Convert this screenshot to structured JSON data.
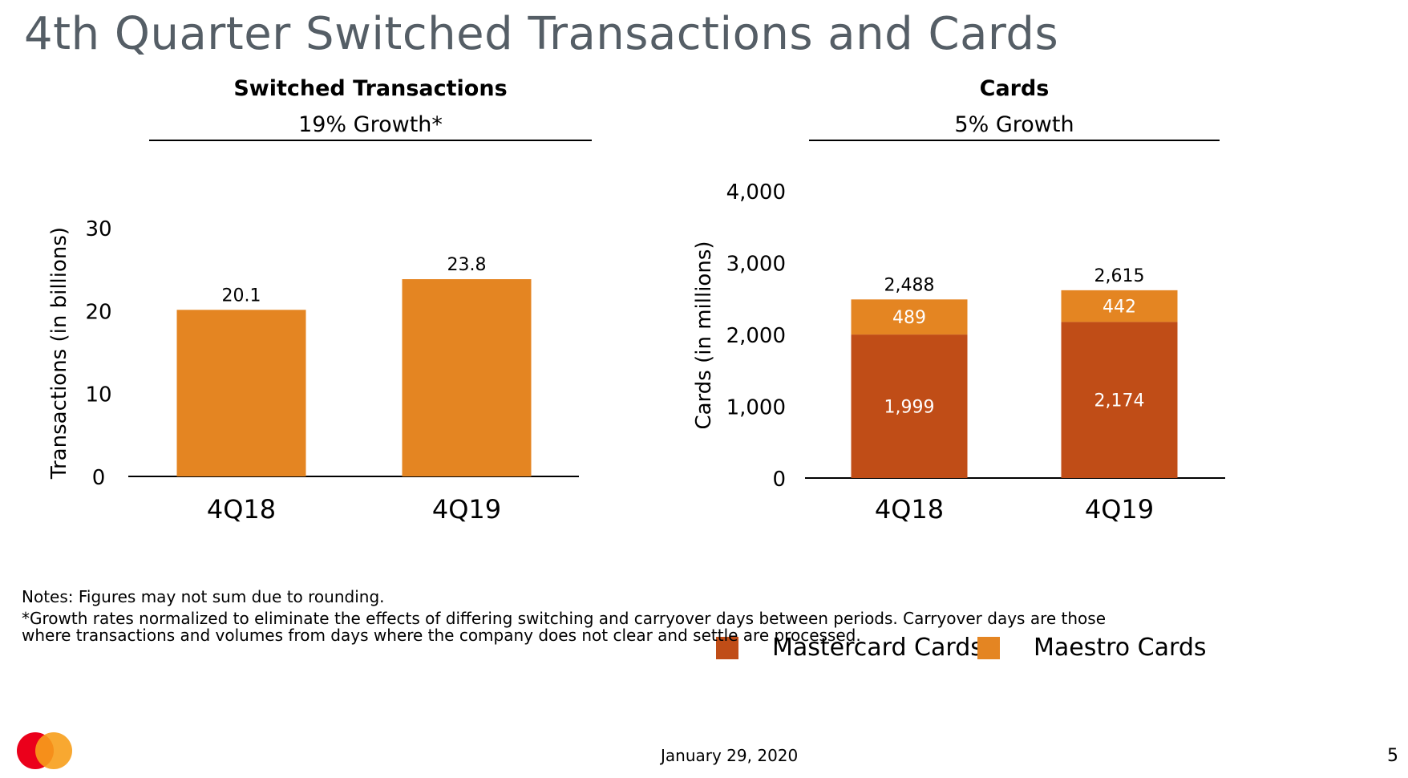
{
  "title": "4th Quarter Switched Transactions and Cards",
  "colors": {
    "title": "#555e66",
    "maestro": "#e48522",
    "mastercard": "#c04d17",
    "logo_red": "#eb001b",
    "logo_orange": "#f79e1b"
  },
  "panels": {
    "left": {
      "title": "Switched Transactions",
      "subtitle": "19% Growth*"
    },
    "right": {
      "title": "Cards",
      "subtitle": "5% Growth"
    }
  },
  "chart_data": [
    {
      "type": "bar",
      "title": "Switched Transactions",
      "ylabel": "Transactions (in billions)",
      "xlabel": "",
      "categories": [
        "4Q18",
        "4Q19"
      ],
      "values": [
        20.1,
        23.8
      ],
      "value_labels": [
        "20.1",
        "23.8"
      ],
      "ylim": [
        0,
        30
      ],
      "yticks": [
        0,
        10,
        20,
        30
      ],
      "ytick_labels": [
        "0",
        "10",
        "20",
        "30"
      ],
      "grid": false,
      "color": "#e48522"
    },
    {
      "type": "bar",
      "stacked": true,
      "title": "Cards",
      "ylabel": "Cards (in millions)",
      "xlabel": "",
      "categories": [
        "4Q18",
        "4Q19"
      ],
      "series": [
        {
          "name": "Mastercard Cards",
          "values": [
            1999,
            2174
          ],
          "labels": [
            "1,999",
            "2,174"
          ],
          "color": "#c04d17"
        },
        {
          "name": "Maestro Cards",
          "values": [
            489,
            442
          ],
          "labels": [
            "489",
            "442"
          ],
          "color": "#e48522"
        }
      ],
      "totals": [
        2488,
        2615
      ],
      "total_labels": [
        "2,488",
        "2,615"
      ],
      "ylim": [
        0,
        4000
      ],
      "yticks": [
        0,
        1000,
        2000,
        3000,
        4000
      ],
      "ytick_labels": [
        "0",
        "1,000",
        "2,000",
        "3,000",
        "4,000"
      ],
      "grid": false,
      "legend": "bottom"
    }
  ],
  "legend": {
    "items": [
      {
        "label": "Mastercard Cards",
        "color": "#c04d17"
      },
      {
        "label": "Maestro Cards",
        "color": "#e48522"
      }
    ]
  },
  "notes": {
    "line1": "Notes: Figures may not sum due to rounding.",
    "line2": "*Growth rates normalized to eliminate the effects of differing switching and carryover days between periods. Carryover days are those",
    "line3": "where transactions and volumes from days where the company does not clear and settle are processed."
  },
  "footer": {
    "date": "January 29, 2020",
    "page": "5"
  },
  "logo": "mastercard-logo"
}
